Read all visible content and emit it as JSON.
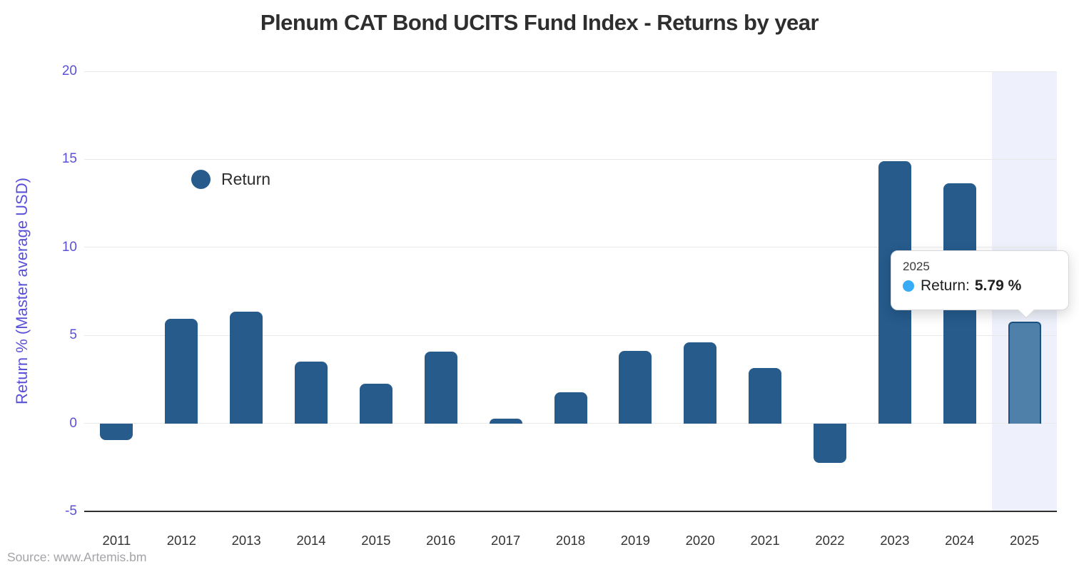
{
  "title": "Plenum CAT Bond UCITS Fund Index - Returns by year",
  "source": {
    "text": "Source: www.Artemis.bm"
  },
  "legend": {
    "label": "Return",
    "color": "#265b8c"
  },
  "tooltip": {
    "year": "2025",
    "label": "Return:",
    "value": "5.79 %",
    "dot_color": "#38abf6"
  },
  "y_axis": {
    "label": "Return % (Master average USD)",
    "tick_color": "#5a51d8"
  },
  "chart_data": {
    "type": "bar",
    "title": "Plenum CAT Bond UCITS Fund Index - Returns by year",
    "categories": [
      "2011",
      "2012",
      "2013",
      "2014",
      "2015",
      "2016",
      "2017",
      "2018",
      "2019",
      "2020",
      "2021",
      "2022",
      "2023",
      "2024",
      "2025"
    ],
    "series": [
      {
        "name": "Return",
        "values": [
          -0.95,
          5.93,
          6.33,
          3.49,
          2.25,
          4.06,
          0.27,
          1.77,
          4.11,
          4.59,
          3.16,
          -2.23,
          14.89,
          13.64,
          5.79
        ]
      }
    ],
    "xlabel": "",
    "ylabel": "Return % (Master average USD)",
    "ylim": [
      -5,
      20
    ],
    "yticks": [
      20,
      15,
      10,
      5,
      0,
      -5
    ],
    "grid": "horizontal",
    "legend_position": "inside-top-left",
    "bar_color": "#265b8c",
    "grid_color": "#e8e8ea",
    "axis_line_color": "#2f2f2f",
    "highlighted_category": "2025",
    "highlight": {
      "fill": "#4f80aa",
      "border": "#1b5180",
      "band_color": "#eef1fb"
    }
  }
}
